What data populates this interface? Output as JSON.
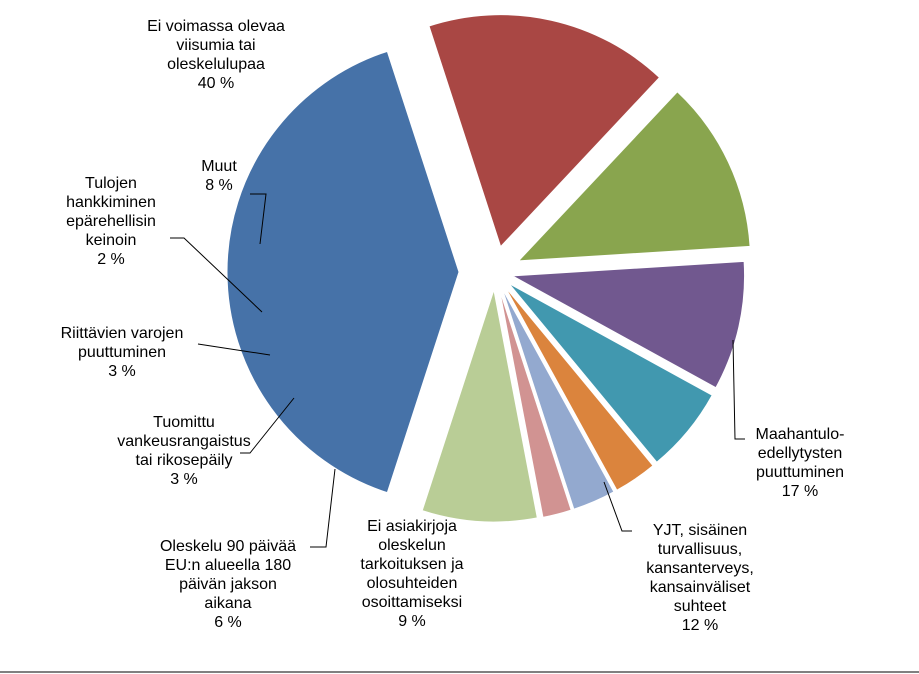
{
  "chart_data": {
    "type": "pie",
    "title": "",
    "unit": "%",
    "slices": [
      {
        "label": "Ei voimassa olevaa viisumia tai oleskelulupaa",
        "lines": [
          "Ei voimassa olevaa",
          "viisumia tai",
          "oleskelulupaa"
        ],
        "value": 40,
        "value_label": "40 %",
        "color": "#4672A8"
      },
      {
        "label": "Maahantulo-edellytysten puuttuminen",
        "lines": [
          "Maahantulo-",
          "edellytysten",
          "puuttuminen"
        ],
        "value": 17,
        "value_label": "17 %",
        "color": "#A94744"
      },
      {
        "label": "YJT, sisäinen turvallisuus, kansanterveys, kansainväliset suhteet",
        "lines": [
          "YJT, sisäinen",
          "turvallisuus,",
          "kansanterveys,",
          "kansainväliset",
          "suhteet"
        ],
        "value": 12,
        "value_label": "12 %",
        "color": "#89A54E"
      },
      {
        "label": "Ei asiakirjoja oleskelun tarkoituksen ja olosuhteiden osoittamiseksi",
        "lines": [
          "Ei asiakirjoja",
          "oleskelun",
          "tarkoituksen ja",
          "olosuhteiden",
          "osoittamiseksi"
        ],
        "value": 9,
        "value_label": "9 %",
        "color": "#71588F"
      },
      {
        "label": "Oleskelu 90 päivää EU:n alueella 180 päivän jakson aikana",
        "lines": [
          "Oleskelu 90 päivää",
          "EU:n alueella 180",
          "päivän jakson",
          "aikana"
        ],
        "value": 6,
        "value_label": "6 %",
        "color": "#4198AF"
      },
      {
        "label": "Tuomittu vankeusrangaistus tai rikosepäily",
        "lines": [
          "Tuomittu",
          "vankeusrangaistus",
          "tai rikosepäily"
        ],
        "value": 3,
        "value_label": "3 %",
        "color": "#DB843D"
      },
      {
        "label": "Riittävien varojen puuttuminen",
        "lines": [
          "Riittävien varojen",
          "puuttuminen"
        ],
        "value": 3,
        "value_label": "3 %",
        "color": "#93A9CF"
      },
      {
        "label": "Tulojen hankkiminen epärehellisin keinoin",
        "lines": [
          "Tulojen",
          "hankkiminen",
          "epärehellisin",
          "keinoin"
        ],
        "value": 2,
        "value_label": "2 %",
        "color": "#D19392"
      },
      {
        "label": "Muut",
        "lines": [
          "Muut"
        ],
        "value": 8,
        "value_label": "8 %",
        "color": "#B9CD96"
      }
    ],
    "legend": "none",
    "data_labels": "outside with leader lines"
  }
}
